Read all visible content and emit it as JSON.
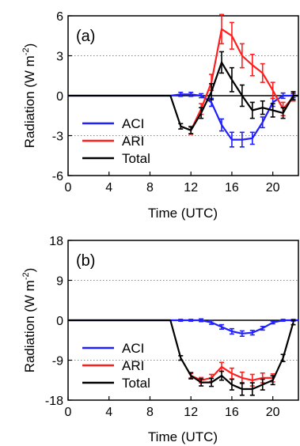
{
  "chart_data": [
    {
      "type": "line",
      "panel_label": "(a)",
      "xlabel": "Time (UTC)",
      "ylabel": "Radiation (W m",
      "ylabel_sup": "-2",
      "ylabel_close": ")",
      "xlim": [
        0,
        22.5
      ],
      "ylim": [
        -6,
        6
      ],
      "xticks": [
        0,
        4,
        8,
        12,
        16,
        20
      ],
      "yticks": [
        -6,
        -3,
        0,
        3,
        6
      ],
      "grid_y": [
        -3,
        3
      ],
      "legend": {
        "placement": "bottom-left"
      },
      "series": [
        {
          "name": "ACI",
          "color": "#1f1fff",
          "x": [
            0,
            10,
            11,
            12,
            13,
            14,
            15,
            16,
            17,
            18,
            19,
            20,
            21,
            22,
            22.5
          ],
          "y": [
            0,
            0,
            0.1,
            0.1,
            0,
            -0.5,
            -2.2,
            -3.3,
            -3.3,
            -3.2,
            -2.0,
            -0.5,
            0,
            0,
            0
          ],
          "err": [
            0,
            0,
            0.15,
            0.15,
            0.15,
            0.3,
            0.45,
            0.55,
            0.55,
            0.45,
            0.4,
            0.3,
            0.2,
            0.15,
            0
          ]
        },
        {
          "name": "ARI",
          "color": "#ff1f1f",
          "x": [
            12,
            13,
            14,
            15,
            16,
            17,
            18,
            19,
            20,
            21,
            22
          ],
          "y": [
            -2.6,
            -1.0,
            1.0,
            5.0,
            4.5,
            3.0,
            2.3,
            1.7,
            0.4,
            -1.0,
            -0.1
          ],
          "err": [
            0.3,
            0.4,
            0.6,
            1.1,
            1.0,
            0.9,
            0.8,
            0.7,
            0.6,
            0.5,
            0.3
          ]
        },
        {
          "name": "Total",
          "color": "#000000",
          "x": [
            0,
            10,
            11,
            12,
            13,
            14,
            15,
            16,
            17,
            18,
            19,
            20,
            21,
            22,
            22.5
          ],
          "y": [
            0,
            0,
            -2.3,
            -2.6,
            -1.3,
            0.3,
            2.5,
            1.2,
            0,
            -1.1,
            -0.9,
            -1.1,
            -1.3,
            0,
            0
          ],
          "err": [
            0,
            0,
            0.2,
            0.25,
            0.4,
            0.6,
            0.8,
            0.9,
            0.8,
            0.6,
            0.5,
            0.5,
            0.4,
            0.3,
            0
          ]
        }
      ]
    },
    {
      "type": "line",
      "panel_label": "(b)",
      "xlabel": "Time (UTC)",
      "ylabel": "Radiation (W m",
      "ylabel_sup": "-2",
      "ylabel_close": ")",
      "xlim": [
        0,
        22.5
      ],
      "ylim": [
        -18,
        18
      ],
      "xticks": [
        0,
        4,
        8,
        12,
        16,
        20
      ],
      "yticks": [
        -18,
        -9,
        0,
        9,
        18
      ],
      "grid_y": [
        -9,
        9
      ],
      "legend": {
        "placement": "bottom-left"
      },
      "series": [
        {
          "name": "ACI",
          "color": "#1f1fff",
          "x": [
            0,
            10,
            11,
            12,
            13,
            14,
            15,
            16,
            17,
            18,
            19,
            20,
            21,
            22,
            22.5
          ],
          "y": [
            0,
            0,
            0,
            0,
            0,
            -0.5,
            -1.5,
            -2.5,
            -3.0,
            -2.8,
            -1.8,
            -0.5,
            0,
            0,
            0
          ],
          "err": [
            0,
            0,
            0.2,
            0.2,
            0.3,
            0.4,
            0.5,
            0.6,
            0.6,
            0.5,
            0.4,
            0.3,
            0.2,
            0.2,
            0
          ]
        },
        {
          "name": "ARI",
          "color": "#ff1f1f",
          "x": [
            12,
            13,
            14,
            15,
            16,
            17,
            18,
            19,
            20
          ],
          "y": [
            -12.5,
            -13.5,
            -13,
            -10.5,
            -12,
            -13,
            -13.5,
            -13,
            -13
          ],
          "err": [
            0.5,
            0.6,
            0.8,
            1.0,
            1.2,
            1.3,
            1.3,
            1.1,
            0.9
          ]
        },
        {
          "name": "Total",
          "color": "#000000",
          "x": [
            0,
            10,
            11,
            12,
            13,
            14,
            15,
            16,
            17,
            18,
            19,
            20,
            21,
            22
          ],
          "y": [
            0,
            0,
            -8.5,
            -12.5,
            -14,
            -14,
            -12.5,
            -14.5,
            -15.5,
            -15.5,
            -14.5,
            -13.5,
            -8.5,
            -0.5
          ],
          "err": [
            0,
            0,
            0.5,
            0.7,
            0.8,
            0.9,
            1.0,
            1.2,
            1.4,
            1.4,
            1.2,
            1.0,
            0.8,
            0.5
          ]
        }
      ]
    }
  ]
}
